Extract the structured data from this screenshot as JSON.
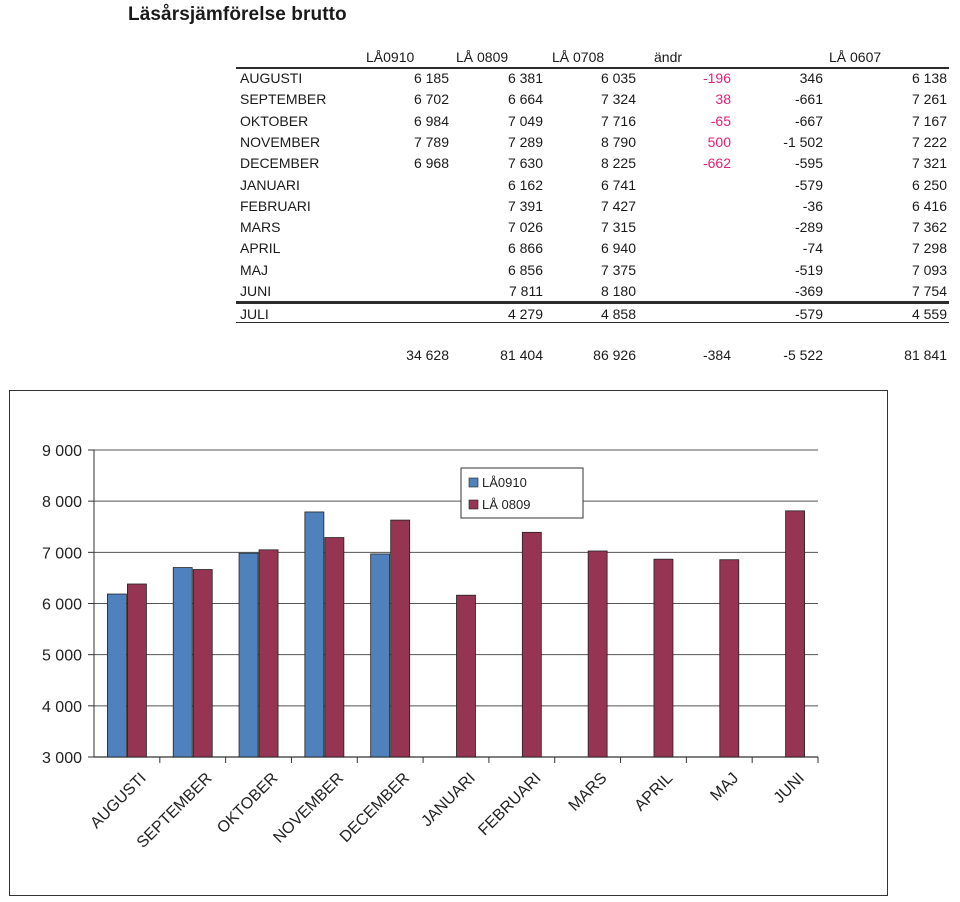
{
  "title": "Läsårsjämförelse brutto",
  "table": {
    "headers": [
      "LÅ0910",
      "LÅ 0809",
      "LÅ 0708",
      "ändr",
      "",
      "LÅ 0607"
    ],
    "rows": [
      {
        "month": "AUGUSTI",
        "la0910": "6 185",
        "la0809": "6 381",
        "la0708": "6 035",
        "andr": "-196",
        "diff": "346",
        "la0607": "6 138"
      },
      {
        "month": "SEPTEMBER",
        "la0910": "6 702",
        "la0809": "6 664",
        "la0708": "7 324",
        "andr": "38",
        "diff": "-661",
        "la0607": "7 261"
      },
      {
        "month": "OKTOBER",
        "la0910": "6 984",
        "la0809": "7 049",
        "la0708": "7 716",
        "andr": "-65",
        "diff": "-667",
        "la0607": "7 167"
      },
      {
        "month": "NOVEMBER",
        "la0910": "7 789",
        "la0809": "7 289",
        "la0708": "8 790",
        "andr": "500",
        "diff": "-1 502",
        "la0607": "7 222"
      },
      {
        "month": "DECEMBER",
        "la0910": "6 968",
        "la0809": "7 630",
        "la0708": "8 225",
        "andr": "-662",
        "diff": "-595",
        "la0607": "7 321"
      },
      {
        "month": "JANUARI",
        "la0910": "",
        "la0809": "6 162",
        "la0708": "6 741",
        "andr": "",
        "diff": "-579",
        "la0607": "6 250"
      },
      {
        "month": "FEBRUARI",
        "la0910": "",
        "la0809": "7 391",
        "la0708": "7 427",
        "andr": "",
        "diff": "-36",
        "la0607": "6 416"
      },
      {
        "month": "MARS",
        "la0910": "",
        "la0809": "7 026",
        "la0708": "7 315",
        "andr": "",
        "diff": "-289",
        "la0607": "7 362"
      },
      {
        "month": "APRIL",
        "la0910": "",
        "la0809": "6 866",
        "la0708": "6 940",
        "andr": "",
        "diff": "-74",
        "la0607": "7 298"
      },
      {
        "month": "MAJ",
        "la0910": "",
        "la0809": "6 856",
        "la0708": "7 375",
        "andr": "",
        "diff": "-519",
        "la0607": "7 093"
      },
      {
        "month": "JUNI",
        "la0910": "",
        "la0809": "7 811",
        "la0708": "8 180",
        "andr": "",
        "diff": "-369",
        "la0607": "7 754"
      },
      {
        "month": "JULI",
        "la0910": "",
        "la0809": "4 279",
        "la0708": "4 858",
        "andr": "",
        "diff": "-579",
        "la0607": "4 559"
      }
    ],
    "totals": {
      "la0910": "34 628",
      "la0809": "81 404",
      "la0708": "86 926",
      "andr": "-384",
      "diff": "-5 522",
      "la0607": "81 841"
    }
  },
  "chart_data": {
    "type": "bar",
    "categories": [
      "AUGUSTI",
      "SEPTEMBER",
      "OKTOBER",
      "NOVEMBER",
      "DECEMBER",
      "JANUARI",
      "FEBRUARI",
      "MARS",
      "APRIL",
      "MAJ",
      "JUNI"
    ],
    "series": [
      {
        "name": "LÅ0910",
        "color": "#4f81bd",
        "values": [
          6185,
          6702,
          6984,
          7789,
          6968,
          null,
          null,
          null,
          null,
          null,
          null
        ]
      },
      {
        "name": "LÅ 0809",
        "color": "#953553",
        "values": [
          6381,
          6664,
          7049,
          7289,
          7630,
          6162,
          7391,
          7026,
          6866,
          6856,
          7811
        ]
      }
    ],
    "ylim": [
      3000,
      9000
    ],
    "yticks": [
      3000,
      4000,
      5000,
      6000,
      7000,
      8000,
      9000
    ],
    "ytick_labels": [
      "3 000",
      "4 000",
      "5 000",
      "6 000",
      "7 000",
      "8 000",
      "9 000"
    ],
    "grid": true,
    "legend_position": "top-center",
    "xlabel": "",
    "ylabel": ""
  }
}
